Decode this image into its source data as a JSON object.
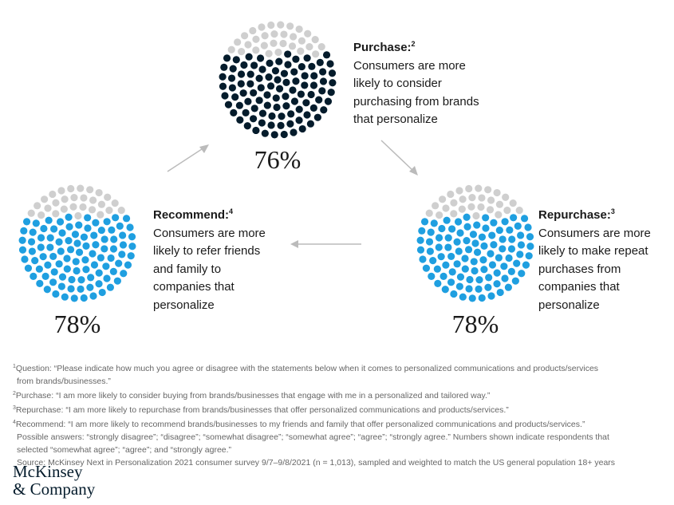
{
  "panels": [
    {
      "title": "Purchase:",
      "note": "2",
      "lines": [
        "Consumers are more",
        "likely to consider",
        "purchasing from brands",
        "that personalize"
      ],
      "value": 76,
      "value_label": "76%",
      "color": "#051c2c"
    },
    {
      "title": "Recommend:",
      "note": "4",
      "lines": [
        "Consumers are more",
        "likely to refer friends",
        "and family to",
        "companies that",
        "personalize"
      ],
      "value": 78,
      "value_label": "78%",
      "color": "#1f9fe0"
    },
    {
      "title": "Repurchase:",
      "note": "3",
      "lines": [
        "Consumers are more",
        "likely to make repeat",
        "purchases from",
        "companies that",
        "personalize"
      ],
      "value": 78,
      "value_label": "78%",
      "color": "#1f9fe0"
    }
  ],
  "empty_color": "#cfcfcf",
  "footnotes": [
    {
      "mark": "1",
      "text": "Question: “Please indicate how much you agree or disagree with the statements below when it comes to personalized communications and products/services"
    },
    {
      "mark": "",
      "text": "from brands/businesses.”"
    },
    {
      "mark": "2",
      "text": "Purchase: “I am more likely to consider buying from brands/businesses that engage with me in a personalized and tailored way.”"
    },
    {
      "mark": "3",
      "text": "Repurchase: “I am more likely to repurchase from brands/businesses that offer personalized communications and products/services.”"
    },
    {
      "mark": "4",
      "text": "Recommend: “I am more likely to recommend brands/businesses to my friends and family that offer personalized communications and products/services.”"
    },
    {
      "mark": "",
      "text": "Possible answers: “strongly disagree”; “disagree”; “somewhat disagree”; “somewhat agree”; “agree”; “strongly agree.” Numbers shown indicate respondents that"
    },
    {
      "mark": "",
      "text": "selected “somewhat agree”; “agree”; and “strongly agree.”"
    },
    {
      "mark": "",
      "text": "Source: McKinsey Next in Personalization 2021 consumer survey 9/7–9/8/2021 (n = 1,013), sampled and weighted to match the US general population 18+ years"
    }
  ],
  "logo": [
    "McKinsey",
    "& Company"
  ]
}
